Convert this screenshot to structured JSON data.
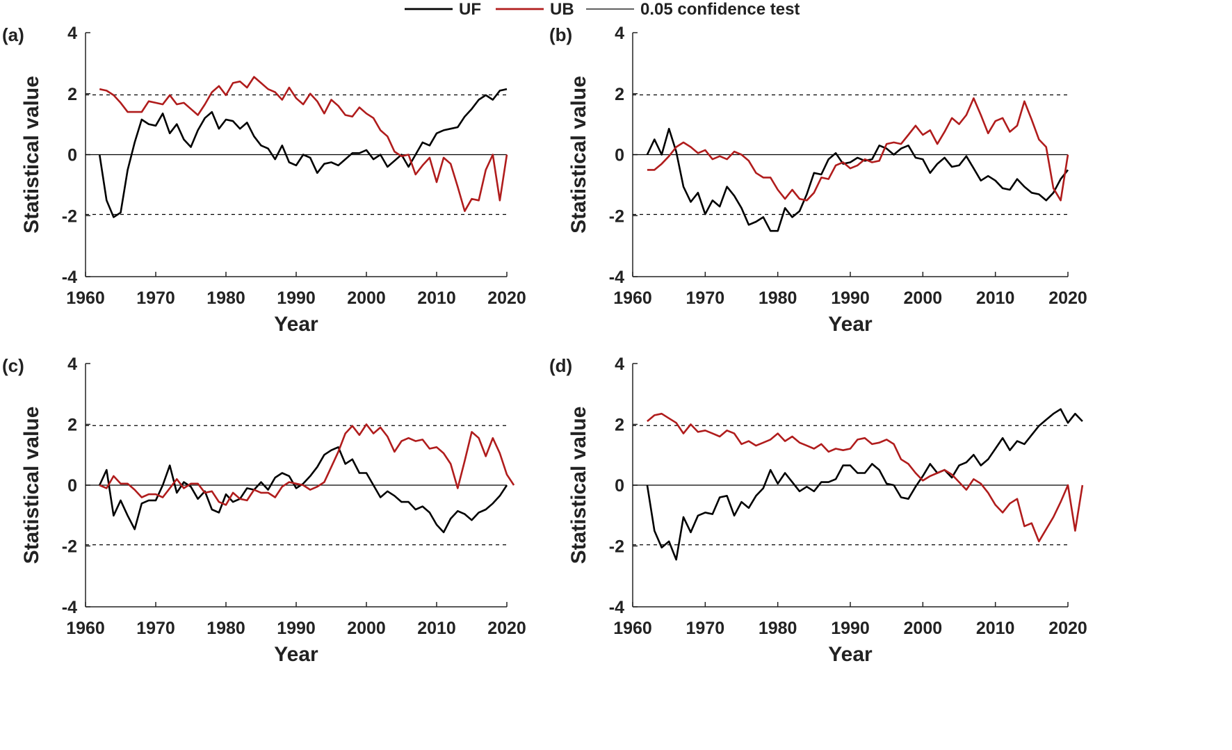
{
  "legend": [
    {
      "label": "UF",
      "color": "#000000",
      "kind": "uf"
    },
    {
      "label": "UB",
      "color": "#b01c1c",
      "kind": "ub"
    },
    {
      "label": "0.05 confidence test",
      "color": "#000000",
      "kind": "conf"
    }
  ],
  "chart_data": [
    {
      "type": "line",
      "panel_label": "(a)",
      "xlabel": "Year",
      "ylabel": "Statistical value",
      "xlim": [
        1960,
        2020
      ],
      "ylim": [
        -4,
        4
      ],
      "xticks": [
        1960,
        1970,
        1980,
        1990,
        2000,
        2010,
        2020
      ],
      "yticks": [
        -4,
        -2,
        0,
        2,
        4
      ],
      "confidence_levels": [
        1.96,
        -1.96
      ],
      "x_start": 1962,
      "series": [
        {
          "name": "UF",
          "values": [
            0.0,
            -1.5,
            -2.05,
            -1.9,
            -0.5,
            0.4,
            1.15,
            1.0,
            0.95,
            1.35,
            0.7,
            1.0,
            0.5,
            0.25,
            0.8,
            1.2,
            1.4,
            0.85,
            1.15,
            1.1,
            0.85,
            1.05,
            0.6,
            0.3,
            0.2,
            -0.15,
            0.3,
            -0.25,
            -0.35,
            0.0,
            -0.1,
            -0.6,
            -0.3,
            -0.25,
            -0.35,
            -0.15,
            0.05,
            0.05,
            0.15,
            -0.15,
            0.0,
            -0.4,
            -0.2,
            0.0,
            -0.4,
            0.0,
            0.4,
            0.3,
            0.7,
            0.8,
            0.85,
            0.9,
            1.25,
            1.5,
            1.8,
            1.95,
            1.8,
            2.1,
            2.15
          ]
        },
        {
          "name": "UB",
          "values": [
            2.15,
            2.1,
            1.95,
            1.7,
            1.4,
            1.4,
            1.4,
            1.75,
            1.7,
            1.65,
            1.95,
            1.65,
            1.7,
            1.5,
            1.3,
            1.65,
            2.05,
            2.25,
            1.95,
            2.35,
            2.4,
            2.2,
            2.55,
            2.35,
            2.15,
            2.05,
            1.8,
            2.2,
            1.85,
            1.65,
            2.0,
            1.75,
            1.35,
            1.8,
            1.6,
            1.3,
            1.25,
            1.55,
            1.35,
            1.2,
            0.8,
            0.6,
            0.1,
            -0.05,
            0.0,
            -0.65,
            -0.35,
            -0.1,
            -0.9,
            -0.1,
            -0.3,
            -1.05,
            -1.85,
            -1.45,
            -1.5,
            -0.5,
            0.0,
            -1.5,
            0.0
          ]
        }
      ]
    },
    {
      "type": "line",
      "panel_label": "(b)",
      "xlabel": "Year",
      "ylabel": "Statistical value",
      "xlim": [
        1960,
        2020
      ],
      "ylim": [
        -4,
        4
      ],
      "xticks": [
        1960,
        1970,
        1980,
        1990,
        2000,
        2010,
        2020
      ],
      "yticks": [
        -4,
        -2,
        0,
        2,
        4
      ],
      "confidence_levels": [
        1.96,
        -1.96
      ],
      "x_start": 1962,
      "series": [
        {
          "name": "UF",
          "values": [
            0.0,
            0.5,
            0.0,
            0.85,
            0.1,
            -1.05,
            -1.55,
            -1.25,
            -1.95,
            -1.5,
            -1.7,
            -1.05,
            -1.35,
            -1.75,
            -2.3,
            -2.2,
            -2.05,
            -2.5,
            -2.5,
            -1.75,
            -2.05,
            -1.85,
            -1.3,
            -0.6,
            -0.65,
            -0.15,
            0.05,
            -0.3,
            -0.25,
            -0.1,
            -0.2,
            -0.15,
            0.3,
            0.2,
            0.0,
            0.2,
            0.3,
            -0.1,
            -0.15,
            -0.6,
            -0.3,
            -0.1,
            -0.4,
            -0.35,
            -0.05,
            -0.45,
            -0.85,
            -0.7,
            -0.85,
            -1.1,
            -1.15,
            -0.8,
            -1.05,
            -1.25,
            -1.3,
            -1.5,
            -1.25,
            -0.8,
            -0.5
          ]
        },
        {
          "name": "UB",
          "values": [
            -0.5,
            -0.5,
            -0.3,
            -0.05,
            0.25,
            0.4,
            0.25,
            0.05,
            0.15,
            -0.15,
            -0.05,
            -0.15,
            0.1,
            0.0,
            -0.2,
            -0.6,
            -0.75,
            -0.75,
            -1.15,
            -1.45,
            -1.15,
            -1.45,
            -1.5,
            -1.25,
            -0.75,
            -0.8,
            -0.35,
            -0.25,
            -0.45,
            -0.35,
            -0.15,
            -0.25,
            -0.2,
            0.35,
            0.4,
            0.35,
            0.65,
            0.95,
            0.65,
            0.8,
            0.35,
            0.75,
            1.2,
            1.0,
            1.3,
            1.85,
            1.3,
            0.7,
            1.1,
            1.2,
            0.75,
            0.95,
            1.75,
            1.15,
            0.5,
            0.25,
            -1.1,
            -1.5,
            0.0
          ]
        }
      ]
    },
    {
      "type": "line",
      "panel_label": "(c)",
      "xlabel": "Year",
      "ylabel": "Statistical value",
      "xlim": [
        1960,
        2020
      ],
      "ylim": [
        -4,
        4
      ],
      "xticks": [
        1960,
        1970,
        1980,
        1990,
        2000,
        2010,
        2020
      ],
      "yticks": [
        -4,
        -2,
        0,
        2,
        4
      ],
      "confidence_levels": [
        1.96,
        -1.96
      ],
      "x_start": 1962,
      "series": [
        {
          "name": "UF",
          "values": [
            0.0,
            0.5,
            -1.0,
            -0.5,
            -1.0,
            -1.45,
            -0.6,
            -0.5,
            -0.5,
            0.0,
            0.65,
            -0.25,
            0.1,
            -0.05,
            -0.45,
            -0.2,
            -0.8,
            -0.9,
            -0.3,
            -0.55,
            -0.45,
            -0.1,
            -0.15,
            0.1,
            -0.15,
            0.25,
            0.4,
            0.3,
            -0.1,
            0.05,
            0.3,
            0.6,
            1.0,
            1.15,
            1.25,
            0.7,
            0.85,
            0.4,
            0.4,
            0.0,
            -0.4,
            -0.2,
            -0.35,
            -0.55,
            -0.55,
            -0.8,
            -0.7,
            -0.9,
            -1.3,
            -1.55,
            -1.1,
            -0.85,
            -0.95,
            -1.15,
            -0.9,
            -0.8,
            -0.6,
            -0.35,
            0.0
          ]
        },
        {
          "name": "UB",
          "values": [
            0.0,
            -0.1,
            0.3,
            0.05,
            0.05,
            -0.15,
            -0.4,
            -0.3,
            -0.3,
            -0.4,
            -0.1,
            0.2,
            -0.1,
            0.05,
            0.05,
            -0.25,
            -0.2,
            -0.55,
            -0.65,
            -0.25,
            -0.45,
            -0.5,
            -0.15,
            -0.25,
            -0.25,
            -0.4,
            -0.05,
            0.1,
            0.05,
            0.0,
            -0.15,
            -0.05,
            0.1,
            0.6,
            1.1,
            1.7,
            1.95,
            1.65,
            2.0,
            1.7,
            1.9,
            1.6,
            1.1,
            1.45,
            1.55,
            1.45,
            1.5,
            1.2,
            1.25,
            1.05,
            0.7,
            -0.1,
            0.8,
            1.75,
            1.55,
            0.95,
            1.55,
            1.05,
            0.35,
            0.0
          ]
        }
      ]
    },
    {
      "type": "line",
      "panel_label": "(d)",
      "xlabel": "Year",
      "ylabel": "Statistical value",
      "xlim": [
        1960,
        2020
      ],
      "ylim": [
        -4,
        4
      ],
      "xticks": [
        1960,
        1970,
        1980,
        1990,
        2000,
        2010,
        2020
      ],
      "yticks": [
        -4,
        -2,
        0,
        2,
        4
      ],
      "confidence_levels": [
        1.96,
        -1.96
      ],
      "x_start": 1962,
      "series": [
        {
          "name": "UF",
          "values": [
            0.0,
            -1.5,
            -2.05,
            -1.85,
            -2.45,
            -1.05,
            -1.55,
            -1.0,
            -0.9,
            -0.95,
            -0.4,
            -0.35,
            -1.0,
            -0.55,
            -0.75,
            -0.35,
            -0.1,
            0.5,
            0.05,
            0.4,
            0.1,
            -0.2,
            -0.05,
            -0.2,
            0.1,
            0.1,
            0.2,
            0.65,
            0.65,
            0.4,
            0.4,
            0.7,
            0.5,
            0.05,
            0.0,
            -0.4,
            -0.45,
            -0.05,
            0.3,
            0.7,
            0.4,
            0.5,
            0.25,
            0.65,
            0.75,
            1.0,
            0.65,
            0.85,
            1.2,
            1.55,
            1.15,
            1.45,
            1.35,
            1.65,
            1.95,
            2.15,
            2.35,
            2.5,
            2.05,
            2.35,
            2.1
          ]
        },
        {
          "name": "UB",
          "values": [
            2.1,
            2.3,
            2.35,
            2.2,
            2.05,
            1.7,
            2.0,
            1.75,
            1.8,
            1.7,
            1.6,
            1.8,
            1.7,
            1.35,
            1.45,
            1.3,
            1.4,
            1.5,
            1.7,
            1.45,
            1.6,
            1.4,
            1.3,
            1.2,
            1.35,
            1.1,
            1.2,
            1.15,
            1.2,
            1.5,
            1.55,
            1.35,
            1.4,
            1.5,
            1.35,
            0.85,
            0.7,
            0.4,
            0.15,
            0.3,
            0.4,
            0.5,
            0.35,
            0.1,
            -0.15,
            0.2,
            0.05,
            -0.25,
            -0.65,
            -0.9,
            -0.6,
            -0.45,
            -1.35,
            -1.25,
            -1.85,
            -1.45,
            -1.05,
            -0.55,
            0.0,
            -1.5,
            0.0
          ]
        }
      ]
    }
  ]
}
